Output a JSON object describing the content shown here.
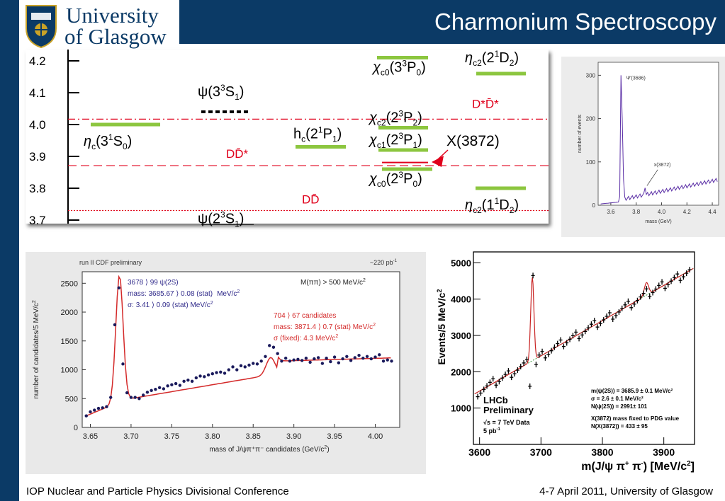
{
  "header": {
    "title": "Charmonium Spectroscopy",
    "logo": {
      "line1": "University",
      "line2": "of Glasgow",
      "icon": "university-crest-icon"
    }
  },
  "footer": {
    "left": "IOP Nuclear and Particle Physics Divisional Conference",
    "right": "4-7 April 2011, University of Glasgow"
  },
  "colors": {
    "brand_blue": "#0b3a66",
    "level_green": "#8cc63f",
    "threshold_red": "#e0001b",
    "cdf_red": "#d42a2a",
    "cdf_blue": "#302a8a",
    "small_purple": "#5b2fa6"
  },
  "chart_data": [
    {
      "type": "level-diagram",
      "y_ticks": [
        "4.2",
        "4.1",
        "4.0",
        "3.9",
        "3.8",
        "3.7"
      ],
      "levels": [
        {
          "label_main": "η",
          "label_sub": "c",
          "label_rest": "(3",
          "label_sup": "1",
          "label_rest2": "S",
          "label_sub2": "0",
          "label_end": ")",
          "mass": 4.0,
          "color": "green"
        },
        {
          "label_main": "ψ(3",
          "label_sup": "3",
          "label_rest2": "S",
          "label_sub2": "1",
          "label_end": ")",
          "mass": 4.04,
          "color": "dotted"
        },
        {
          "label_main": "h",
          "label_sub": "c",
          "label_rest": "(2",
          "label_sup": "1",
          "label_rest2": "P",
          "label_sub2": "1",
          "label_end": ")",
          "mass": 3.93,
          "color": "green"
        },
        {
          "label_main": "χ",
          "label_sub": "c0",
          "label_rest": "(3",
          "label_sup": "3",
          "label_rest2": "P",
          "label_sub2": "0",
          "label_end": ")",
          "mass": 4.21,
          "color": "green"
        },
        {
          "label_main": "χ",
          "label_sub": "c2",
          "label_rest": "(2",
          "label_sup": "3",
          "label_rest2": "P",
          "label_sub2": "2",
          "label_end": ")",
          "mass": 3.99,
          "color": "green"
        },
        {
          "label_main": "χ",
          "label_sub": "c1",
          "label_rest": "(2",
          "label_sup": "3",
          "label_rest2": "P",
          "label_sub2": "1",
          "label_end": ")",
          "mass": 3.92,
          "color": "green"
        },
        {
          "label_main": "χ",
          "label_sub": "c0",
          "label_rest": "(2",
          "label_sup": "3",
          "label_rest2": "P",
          "label_sub2": "0",
          "label_end": ")",
          "mass": 3.86,
          "color": "green"
        },
        {
          "label_main": "η",
          "label_sub": "c2",
          "label_rest": "(2",
          "label_sup": "1",
          "label_rest2": "D",
          "label_sub2": "2",
          "label_end": ")",
          "mass": 4.16,
          "color": "green"
        },
        {
          "label_main": "η",
          "label_sub": "c2",
          "label_rest": "(1",
          "label_sup": "1",
          "label_rest2": "D",
          "label_sub2": "2",
          "label_end": ")",
          "mass": 3.8,
          "color": "green"
        },
        {
          "label_main": "ψ(2",
          "label_sup": "3",
          "label_rest2": "S",
          "label_sub2": "1",
          "label_end": ")",
          "mass": 3.686,
          "color": "black"
        }
      ],
      "x3872_label": "X(3872)",
      "thresholds": [
        {
          "label": "D*D̄*",
          "mass": 4.017,
          "style": "dash-dot"
        },
        {
          "label": "DD̄*",
          "mass": 3.871,
          "style": "dashed"
        },
        {
          "label": "DD̄",
          "mass": 3.73,
          "style": "dotted"
        }
      ]
    },
    {
      "type": "scatter",
      "title": "run II CDF preliminary",
      "luminosity": "~220 pb",
      "luminosity_sup": "-1",
      "ylabel": "number of candidates/5 MeV/c",
      "ylabel_sup": "2",
      "xlabel": "mass of J/ψπ⁺π⁻ candidates (GeV/c",
      "xlabel_sup": "2",
      "xlabel_end": ")",
      "x_ticks": [
        "3.65",
        "3.70",
        "3.75",
        "3.80",
        "3.85",
        "3.90",
        "3.95",
        "4.00"
      ],
      "y_ticks": [
        "0",
        "500",
        "1000",
        "1500",
        "2000",
        "2500"
      ],
      "xlim": [
        3.64,
        4.03
      ],
      "ylim": [
        0,
        2700
      ],
      "cut": "M(ππ) > 500 MeV/c",
      "cut_sup": "2",
      "psi_box": [
        "3678 ⟩ 99 ψ(2S)",
        "mass: 3685.67 ⟩ 0.08 (stat)",
        "σ: 3.41 ⟩ 0.09 (stat) MeV/c"
      ],
      "psi_mass_unit": "MeV/c",
      "psi_sup": "2",
      "x_box": [
        "704 ⟩ 67 candidates",
        "mass: 3871.4 ⟩ 0.7 (stat) MeV/c",
        "σ (fixed): 4.3 MeV/c"
      ],
      "x_sup": "2",
      "points": [
        [
          3.645,
          200
        ],
        [
          3.65,
          270
        ],
        [
          3.655,
          300
        ],
        [
          3.66,
          330
        ],
        [
          3.665,
          340
        ],
        [
          3.67,
          360
        ],
        [
          3.675,
          520
        ],
        [
          3.68,
          1780
        ],
        [
          3.685,
          2420
        ],
        [
          3.69,
          1100
        ],
        [
          3.695,
          600
        ],
        [
          3.7,
          520
        ],
        [
          3.705,
          520
        ],
        [
          3.71,
          500
        ],
        [
          3.715,
          560
        ],
        [
          3.72,
          610
        ],
        [
          3.725,
          640
        ],
        [
          3.73,
          660
        ],
        [
          3.735,
          690
        ],
        [
          3.74,
          670
        ],
        [
          3.745,
          720
        ],
        [
          3.75,
          740
        ],
        [
          3.755,
          760
        ],
        [
          3.76,
          730
        ],
        [
          3.765,
          800
        ],
        [
          3.77,
          820
        ],
        [
          3.775,
          800
        ],
        [
          3.78,
          860
        ],
        [
          3.785,
          890
        ],
        [
          3.79,
          880
        ],
        [
          3.795,
          910
        ],
        [
          3.8,
          930
        ],
        [
          3.805,
          950
        ],
        [
          3.81,
          960
        ],
        [
          3.815,
          940
        ],
        [
          3.82,
          1000
        ],
        [
          3.825,
          1050
        ],
        [
          3.83,
          1000
        ],
        [
          3.835,
          1070
        ],
        [
          3.84,
          1050
        ],
        [
          3.845,
          1080
        ],
        [
          3.85,
          1110
        ],
        [
          3.855,
          1100
        ],
        [
          3.86,
          1150
        ],
        [
          3.865,
          1230
        ],
        [
          3.87,
          1420
        ],
        [
          3.875,
          1390
        ],
        [
          3.88,
          1280
        ],
        [
          3.885,
          1150
        ],
        [
          3.89,
          1200
        ],
        [
          3.895,
          1150
        ],
        [
          3.9,
          1170
        ],
        [
          3.905,
          1180
        ],
        [
          3.91,
          1160
        ],
        [
          3.915,
          1200
        ],
        [
          3.92,
          1130
        ],
        [
          3.925,
          1190
        ],
        [
          3.93,
          1210
        ],
        [
          3.935,
          1110
        ],
        [
          3.94,
          1200
        ],
        [
          3.945,
          1140
        ],
        [
          3.95,
          1220
        ],
        [
          3.955,
          1120
        ],
        [
          3.96,
          1190
        ],
        [
          3.965,
          1230
        ],
        [
          3.97,
          1160
        ],
        [
          3.975,
          1210
        ],
        [
          3.98,
          1250
        ],
        [
          3.985,
          1200
        ],
        [
          3.99,
          1230
        ],
        [
          3.995,
          1190
        ],
        [
          4.0,
          1220
        ],
        [
          4.005,
          1260
        ],
        [
          4.01,
          1150
        ],
        [
          4.015,
          1170
        ],
        [
          4.02,
          1150
        ]
      ]
    },
    {
      "type": "line",
      "ylabel": "number of events",
      "xlabel": "mass (GeV)",
      "x_ticks": [
        "3.6",
        "3.8",
        "4.0",
        "4.2",
        "4.4"
      ],
      "y_ticks": [
        "0",
        "100",
        "200",
        "300"
      ],
      "xlim": [
        3.5,
        4.45
      ],
      "ylim": [
        0,
        330
      ],
      "peak_label": "Ψ'(3686)",
      "x_label": "x(3872)"
    },
    {
      "type": "scatter",
      "ylabel": "Events/5 MeV/c",
      "ylabel_sup": "2",
      "xlabel_main": "m(J/ψ π",
      "xlabel_sup1": "+",
      "xlabel_mid": " π",
      "xlabel_sup2": "-",
      "xlabel_end": ") [MeV/c",
      "xlabel_sup3": "2",
      "xlabel_close": "]",
      "x_ticks": [
        "3600",
        "3700",
        "3800",
        "3900"
      ],
      "y_ticks": [
        "1000",
        "2000",
        "3000",
        "4000",
        "5000"
      ],
      "xlim": [
        3590,
        3950
      ],
      "ylim": [
        0,
        5300
      ],
      "experiment": [
        "LHCb",
        "Preliminary"
      ],
      "energy": "√s = 7 TeV Data",
      "lumi": "5 pb",
      "lumi_sup": "-1",
      "fit_text": [
        "m(ψ(2S)) = 3685.9 ± 0.1 MeV/c²",
        "σ = 2.6 ± 0.1 MeV/c²",
        "N(ψ(2S)) = 2991± 101",
        "X(3872) mass fixed to PDG value",
        "N(X(3872)) = 433 ± 95"
      ]
    }
  ]
}
